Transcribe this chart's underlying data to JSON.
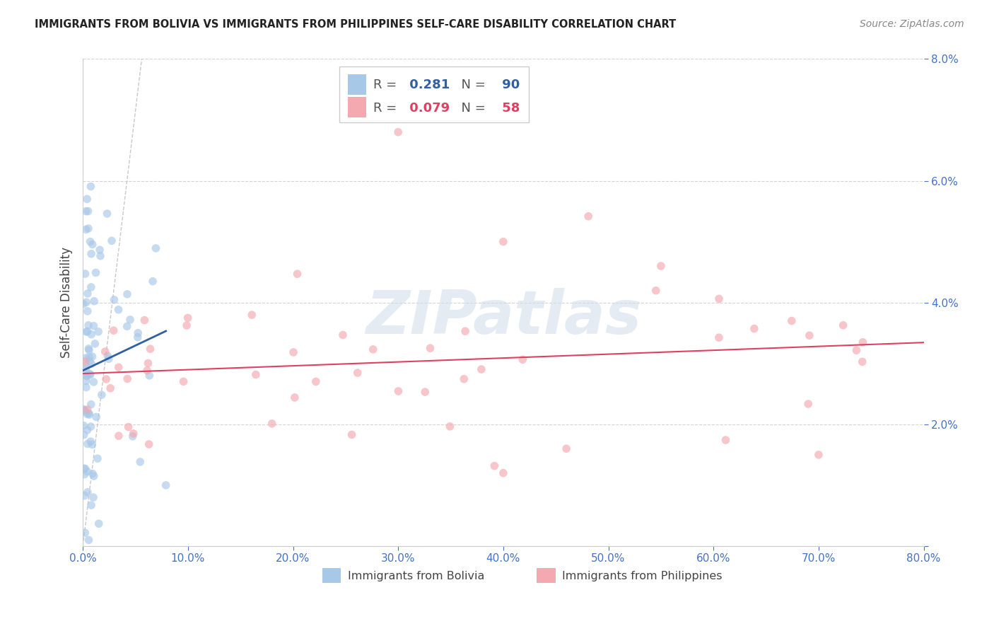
{
  "title": "IMMIGRANTS FROM BOLIVIA VS IMMIGRANTS FROM PHILIPPINES SELF-CARE DISABILITY CORRELATION CHART",
  "source": "Source: ZipAtlas.com",
  "ylabel": "Self-Care Disability",
  "xlim": [
    0.0,
    0.8
  ],
  "ylim": [
    0.0,
    0.08
  ],
  "xticks": [
    0.0,
    0.1,
    0.2,
    0.3,
    0.4,
    0.5,
    0.6,
    0.7,
    0.8
  ],
  "yticks": [
    0.0,
    0.02,
    0.04,
    0.06,
    0.08
  ],
  "xtick_labels": [
    "0.0%",
    "10.0%",
    "20.0%",
    "30.0%",
    "40.0%",
    "50.0%",
    "60.0%",
    "70.0%",
    "80.0%"
  ],
  "ytick_labels": [
    "",
    "2.0%",
    "4.0%",
    "6.0%",
    "8.0%"
  ],
  "bolivia_R": 0.281,
  "bolivia_N": 90,
  "philippines_R": 0.079,
  "philippines_N": 58,
  "bolivia_color": "#a8c8e8",
  "philippines_color": "#f4a8b0",
  "bolivia_trend_color": "#3060a0",
  "philippines_trend_color": "#e04060",
  "scatter_alpha": 0.65,
  "scatter_size": 70,
  "watermark": "ZIPatlas",
  "background_color": "#ffffff",
  "grid_color": "#d0d0d0",
  "tick_color": "#4472c4",
  "title_color": "#222222",
  "source_color": "#888888",
  "ylabel_color": "#444444"
}
